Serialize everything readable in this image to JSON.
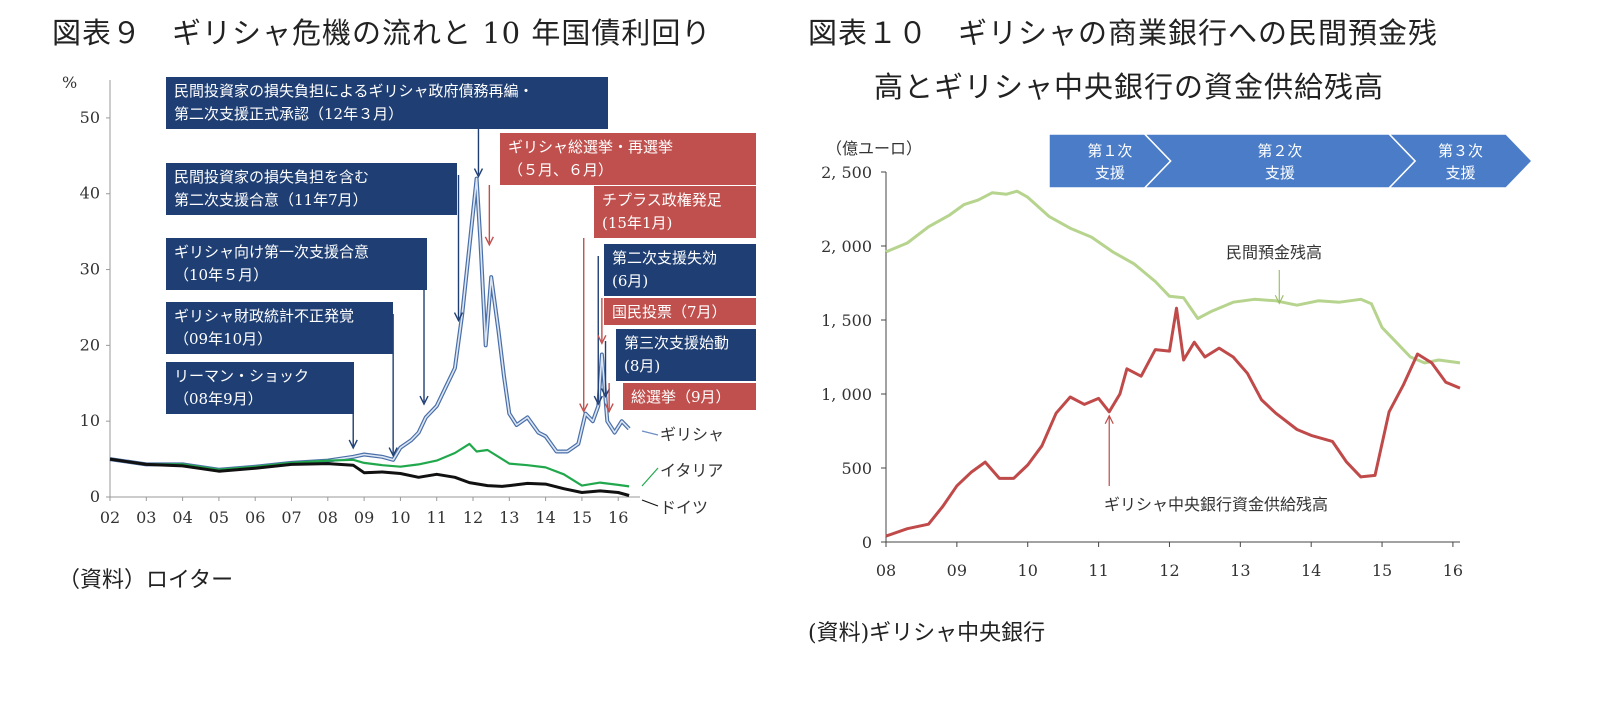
{
  "left": {
    "title": "図表９　ギリシャ危機の流れと 10 年国債利回り",
    "source": "（資料）ロイター",
    "chart_data": {
      "type": "line",
      "title": "ギリシャ危機の流れと 10 年国債利回り",
      "ylabel": "%",
      "ylim": [
        0,
        55
      ],
      "yticks": [
        "0",
        "10",
        "20",
        "30",
        "40",
        "50"
      ],
      "xlim": [
        2002,
        2016.6
      ],
      "xticks": [
        "02",
        "03",
        "04",
        "05",
        "06",
        "07",
        "08",
        "09",
        "10",
        "11",
        "12",
        "13",
        "14",
        "15",
        "16"
      ],
      "series": [
        {
          "name": "ギリシャ",
          "color": "#6d8fc4",
          "x": [
            2002,
            2003,
            2004,
            2005,
            2006,
            2007,
            2008,
            2008.7,
            2009,
            2009.5,
            2009.8,
            2010,
            2010.3,
            2010.5,
            2010.7,
            2011,
            2011.3,
            2011.5,
            2011.7,
            2011.9,
            2012.1,
            2012.2,
            2012.35,
            2012.5,
            2012.7,
            2012.85,
            2013,
            2013.2,
            2013.5,
            2013.8,
            2014,
            2014.3,
            2014.6,
            2014.9,
            2015.1,
            2015.3,
            2015.45,
            2015.55,
            2015.7,
            2015.9,
            2016.1,
            2016.3
          ],
          "values": [
            5,
            4.3,
            4.3,
            3.6,
            4.0,
            4.5,
            4.8,
            5.3,
            5.6,
            5.3,
            4.9,
            6.5,
            7.5,
            8.5,
            10.5,
            12,
            15,
            17,
            24,
            33,
            42,
            34,
            20,
            29,
            22,
            16,
            11,
            9.5,
            10.5,
            8.5,
            8,
            6,
            6,
            7,
            11,
            10,
            12,
            18.8,
            10,
            8.5,
            10,
            9
          ]
        },
        {
          "name": "イタリア",
          "color": "#22a84c",
          "x": [
            2002,
            2003,
            2004,
            2005,
            2006,
            2007,
            2008,
            2008.7,
            2009,
            2009.5,
            2010,
            2010.5,
            2011,
            2011.5,
            2011.9,
            2012.1,
            2012.4,
            2012.8,
            2013,
            2013.5,
            2014,
            2014.5,
            2015,
            2015.5,
            2016,
            2016.3
          ],
          "values": [
            5,
            4.3,
            4.3,
            3.6,
            4.0,
            4.5,
            4.8,
            4.9,
            4.5,
            4.2,
            4.0,
            4.3,
            4.8,
            5.8,
            7.0,
            6.0,
            6.2,
            5.0,
            4.4,
            4.2,
            3.9,
            3.0,
            1.5,
            1.9,
            1.6,
            1.4
          ]
        },
        {
          "name": "ドイツ",
          "color": "#111111",
          "x": [
            2002,
            2003,
            2004,
            2005,
            2006,
            2007,
            2008,
            2008.7,
            2009,
            2009.5,
            2010,
            2010.5,
            2011,
            2011.5,
            2011.9,
            2012.4,
            2012.8,
            2013,
            2013.5,
            2014,
            2014.5,
            2015,
            2015.5,
            2016,
            2016.3
          ],
          "values": [
            5,
            4.3,
            4.1,
            3.4,
            3.8,
            4.3,
            4.4,
            4.2,
            3.2,
            3.3,
            3.1,
            2.6,
            3.0,
            2.6,
            1.9,
            1.5,
            1.4,
            1.5,
            1.8,
            1.7,
            1.1,
            0.6,
            0.8,
            0.6,
            0.2
          ]
        }
      ],
      "series_labels": [
        "ギリシャ",
        "イタリア",
        "ドイツ"
      ],
      "annotations": [
        {
          "lines": [
            "リーマン・ショック",
            "（08年9月）"
          ],
          "style": "blue",
          "x": 2008.7,
          "y": 6.2
        },
        {
          "lines": [
            "ギリシャ財政統計不正発覚",
            "（09年10月）"
          ],
          "style": "blue",
          "x": 2009.8,
          "y": 5.2
        },
        {
          "lines": [
            "ギリシャ向け第一次支援合意",
            "（10年５月）"
          ],
          "style": "blue",
          "x": 2010.65,
          "y": 12
        },
        {
          "lines": [
            "民間投資家の損失負担を含む",
            "第二次支援合意（11年7月）"
          ],
          "style": "blue",
          "x": 2011.6,
          "y": 23
        },
        {
          "lines": [
            "民間投資家の損失負担によるギリシャ政府債務再編・",
            "第二次支援正式承認（12年３月）"
          ],
          "style": "blue",
          "x": 2012.15,
          "y": 42
        },
        {
          "lines": [
            "ギリシャ総選挙・再選挙",
            "（５月、６月）"
          ],
          "style": "red",
          "x": 2012.45,
          "y": 33
        },
        {
          "lines": [
            "チプラス政権発足",
            "(15年1月)"
          ],
          "style": "red",
          "x": 2015.05,
          "y": 11
        },
        {
          "lines": [
            "第二次支援失効",
            "(6月)"
          ],
          "style": "blue",
          "x": 2015.45,
          "y": 12
        },
        {
          "lines": [
            "国民投票（7月）"
          ],
          "style": "red",
          "x": 2015.55,
          "y": 20
        },
        {
          "lines": [
            "第三次支援始動",
            "(8月)"
          ],
          "style": "blue",
          "x": 2015.65,
          "y": 13
        },
        {
          "lines": [
            "総選挙（9月）"
          ],
          "style": "red",
          "x": 2015.75,
          "y": 11
        }
      ]
    }
  },
  "right": {
    "title_line1": "図表１０　ギリシャの商業銀行への民間預金残",
    "title_line2": "高とギリシャ中央銀行の資金供給残高",
    "source": "(資料)ギリシャ中央銀行",
    "chart_data": {
      "type": "line",
      "title": "ギリシャの商業銀行への民間預金残高とギリシャ中央銀行の資金供給残高",
      "ylabel": "（億ユーロ）",
      "ylim": [
        0,
        2500
      ],
      "yticks": [
        "0",
        "500",
        "1, 000",
        "1, 500",
        "2, 000",
        "2, 500"
      ],
      "xlim": [
        2008,
        2016.1
      ],
      "xticks": [
        "08",
        "09",
        "10",
        "11",
        "12",
        "13",
        "14",
        "15",
        "16"
      ],
      "series": [
        {
          "name": "民間預金残高",
          "color": "#b6d48e",
          "x": [
            2008,
            2008.3,
            2008.6,
            2008.9,
            2009.1,
            2009.3,
            2009.5,
            2009.7,
            2009.85,
            2010,
            2010.3,
            2010.6,
            2010.9,
            2011.2,
            2011.5,
            2011.8,
            2012.0,
            2012.2,
            2012.4,
            2012.6,
            2012.9,
            2013.2,
            2013.5,
            2013.8,
            2014.1,
            2014.4,
            2014.7,
            2014.85,
            2015.0,
            2015.2,
            2015.4,
            2015.6,
            2015.8,
            2016.1
          ],
          "values": [
            1960,
            2020,
            2130,
            2210,
            2280,
            2310,
            2360,
            2350,
            2370,
            2330,
            2200,
            2120,
            2060,
            1960,
            1880,
            1760,
            1660,
            1650,
            1510,
            1560,
            1620,
            1640,
            1630,
            1600,
            1630,
            1620,
            1640,
            1610,
            1450,
            1350,
            1250,
            1210,
            1230,
            1210
          ]
        },
        {
          "name": "ギリシャ中央銀行資金供給残高",
          "color": "#bf4a49",
          "x": [
            2008,
            2008.3,
            2008.6,
            2008.8,
            2009.0,
            2009.2,
            2009.4,
            2009.6,
            2009.8,
            2010.0,
            2010.2,
            2010.4,
            2010.6,
            2010.8,
            2011.0,
            2011.15,
            2011.3,
            2011.4,
            2011.6,
            2011.8,
            2012.0,
            2012.1,
            2012.2,
            2012.35,
            2012.5,
            2012.7,
            2012.9,
            2013.1,
            2013.3,
            2013.5,
            2013.8,
            2014.0,
            2014.3,
            2014.5,
            2014.7,
            2014.9,
            2015.1,
            2015.3,
            2015.5,
            2015.7,
            2015.9,
            2016.1
          ],
          "values": [
            40,
            90,
            120,
            240,
            380,
            470,
            540,
            430,
            430,
            520,
            650,
            870,
            980,
            930,
            970,
            880,
            1000,
            1170,
            1120,
            1300,
            1290,
            1580,
            1230,
            1350,
            1250,
            1310,
            1250,
            1140,
            960,
            870,
            760,
            720,
            680,
            540,
            440,
            450,
            880,
            1060,
            1270,
            1210,
            1080,
            1040
          ]
        }
      ],
      "annotations": [
        {
          "text": "民間預金残高",
          "x": 2013.55,
          "y": 1640
        },
        {
          "text": "ギリシャ中央銀行資金供給残高",
          "x": 2011.15,
          "y": 880
        }
      ],
      "phases": [
        {
          "label": "第１次支援",
          "lines": [
            "第１次",
            "支援"
          ],
          "start": 2010.3,
          "end": 2011.65
        },
        {
          "label": "第２次支援",
          "lines": [
            "第２次",
            "支援"
          ],
          "start": 2011.65,
          "end": 2015.1
        },
        {
          "label": "第３次支援",
          "lines": [
            "第３次",
            "支援"
          ],
          "start": 2015.1,
          "end": 2016.1
        }
      ]
    }
  }
}
